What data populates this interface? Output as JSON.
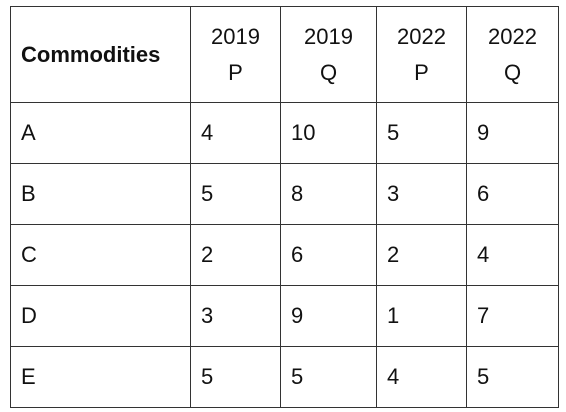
{
  "table": {
    "header_first": "Commodities",
    "columns": [
      {
        "year": "2019",
        "type": "P"
      },
      {
        "year": "2019",
        "type": "Q"
      },
      {
        "year": "2022",
        "type": "P"
      },
      {
        "year": "2022",
        "type": "Q"
      }
    ],
    "rows": [
      {
        "commodity": "A",
        "values": [
          "4",
          "10",
          "5",
          "9"
        ]
      },
      {
        "commodity": "B",
        "values": [
          "5",
          "8",
          "3",
          "6"
        ]
      },
      {
        "commodity": "C",
        "values": [
          "2",
          "6",
          "2",
          "4"
        ]
      },
      {
        "commodity": "D",
        "values": [
          "3",
          "9",
          "1",
          "7"
        ]
      },
      {
        "commodity": "E",
        "values": [
          "5",
          "5",
          "4",
          "5"
        ]
      }
    ]
  }
}
